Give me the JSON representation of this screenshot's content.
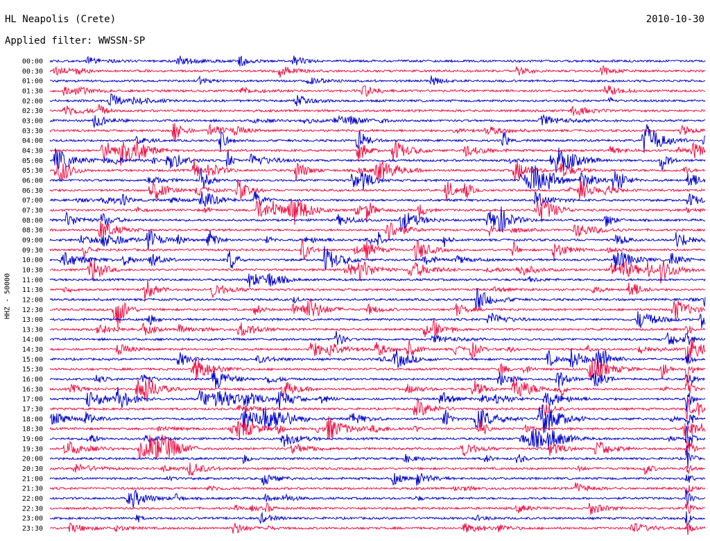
{
  "header": {
    "station": "HL Neapolis (Crete)",
    "date": "2010-10-30",
    "filter": "Applied filter: WWSSN-SP"
  },
  "axis": {
    "ylabel": "HHZ - 50000"
  },
  "colors": {
    "trace_a": "#0000cc",
    "trace_b": "#ee1144",
    "background": "#ffffff",
    "text": "#000000"
  },
  "chart_data": {
    "type": "line",
    "title": "HL Neapolis (Crete)",
    "ylabel": "HHZ - 50000",
    "trace_colors": [
      "#0000cc",
      "#ee1144"
    ],
    "rows": [
      "00:00",
      "00:30",
      "01:00",
      "01:30",
      "02:00",
      "02:30",
      "03:00",
      "03:30",
      "04:00",
      "04:30",
      "05:00",
      "05:30",
      "06:00",
      "06:30",
      "07:00",
      "07:30",
      "08:00",
      "08:30",
      "09:00",
      "09:30",
      "10:00",
      "10:30",
      "11:00",
      "11:30",
      "12:00",
      "12:30",
      "13:00",
      "13:30",
      "14:00",
      "14:30",
      "15:00",
      "15:30",
      "16:00",
      "16:30",
      "17:00",
      "17:30",
      "18:00",
      "18:30",
      "19:00",
      "19:30",
      "20:00",
      "20:30",
      "21:00",
      "21:30",
      "22:00",
      "22:30",
      "23:00",
      "23:30"
    ],
    "grid": false,
    "legend": "none"
  }
}
